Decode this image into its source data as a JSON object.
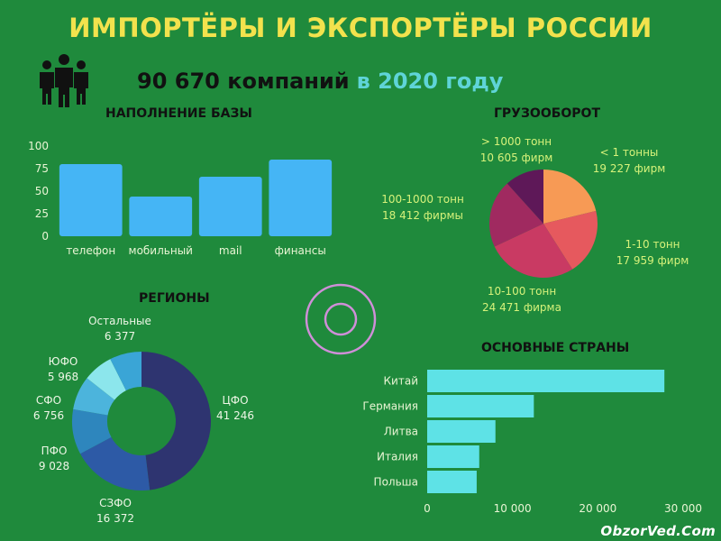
{
  "header": {
    "title": "ИМПОРТЁРЫ И ЭКСПОРТЁРЫ РОССИИ",
    "count_text": "90 670 компаний",
    "year_text": "в 2020 году"
  },
  "colors": {
    "background": "#1f8a3c",
    "title": "#f2e24d",
    "bars": "#45b5f5",
    "countries": "#5ee2e6",
    "pie_label": "#d6f27a"
  },
  "icons": {
    "people": "people-group-icon",
    "decor": "concentric-circles-icon"
  },
  "watermark": "ObzorVed.Com",
  "chart_data": [
    {
      "type": "bar",
      "title": "НАПОЛНЕНИЕ БАЗЫ",
      "categories": [
        "телефон",
        "мобильный",
        "mail",
        "финансы"
      ],
      "values": [
        80,
        44,
        66,
        85
      ],
      "ylim": [
        0,
        100
      ],
      "yticks": [
        "0",
        "25",
        "50",
        "75",
        "100"
      ],
      "grid": false
    },
    {
      "type": "pie",
      "title": "ГРУЗООБОРОТ",
      "slices": [
        {
          "name": "< 1 тонны",
          "label": "19 227 фирм",
          "value": 19227,
          "color": "#f79a55"
        },
        {
          "name": "1-10 тонн",
          "label": "17 959 фирм",
          "value": 17959,
          "color": "#e6595e"
        },
        {
          "name": "10-100 тонн",
          "label": "24 471 фирма",
          "value": 24471,
          "color": "#c93a63"
        },
        {
          "name": "100-1000 тонн",
          "label": "18 412 фирмы",
          "value": 18412,
          "color": "#a02a60"
        },
        {
          "name": "> 1000 тонн",
          "label": "10 605 фирм",
          "value": 10605,
          "color": "#5e1858"
        }
      ]
    },
    {
      "type": "pie",
      "title": "РЕГИОНЫ",
      "donut": true,
      "slices": [
        {
          "name": "ЦФО",
          "label": "41 246",
          "value": 41246,
          "color": "#2e3470"
        },
        {
          "name": "СЗФО",
          "label": "16 372",
          "value": 16372,
          "color": "#2d5aa6"
        },
        {
          "name": "ПФО",
          "label": "9 028",
          "value": 9028,
          "color": "#2e86bd"
        },
        {
          "name": "СФО",
          "label": "6 756",
          "value": 6756,
          "color": "#4cb4dc"
        },
        {
          "name": "ЮФО",
          "label": "5 968",
          "value": 5968,
          "color": "#8ce6ec"
        },
        {
          "name": "Остальные",
          "label": "6 377",
          "value": 6377,
          "color": "#3aa5d6"
        }
      ]
    },
    {
      "type": "bar",
      "orientation": "horizontal",
      "title": "ОСНОВНЫЕ СТРАНЫ",
      "categories": [
        "Китай",
        "Германия",
        "Литва",
        "Италия",
        "Польша"
      ],
      "values": [
        27800,
        12500,
        8000,
        6100,
        5800
      ],
      "xlim": [
        0,
        30000
      ],
      "xticks": [
        "0",
        "10 000",
        "20 000",
        "30 000"
      ],
      "grid": false
    }
  ]
}
